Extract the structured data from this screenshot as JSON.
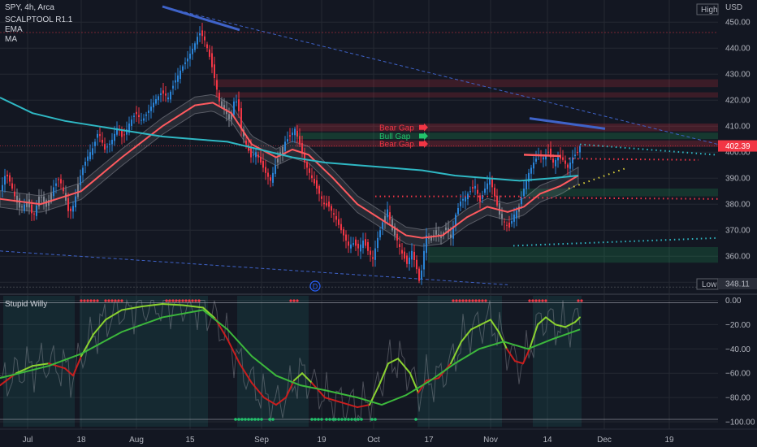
{
  "header": {
    "symbol": "SPY, 4h, Arca",
    "indicators": [
      "SCALPTOOL R1.1",
      "EMA",
      "MA"
    ],
    "currency": "USD"
  },
  "oscillator": {
    "title": "Stupid Willy"
  },
  "colors": {
    "background": "#131722",
    "grid": "#242832",
    "up_candle": "#2a83d6",
    "down_candle": "#f23645",
    "neutral_candle": "#808590",
    "ema": "#ff5a5f",
    "ma": "#2fb8c4",
    "bear_gap": "#f23645",
    "bull_gap": "#22c36b",
    "osc_green": "#8bd230",
    "osc_red": "#c81e1e",
    "osc_signal": "#3cb83c"
  },
  "chart_data": [
    {
      "type": "candlestick",
      "symbol": "SPY",
      "timeframe": "4h",
      "ylim": [
        346,
        456
      ],
      "y_ticks": [
        350,
        360,
        370,
        380,
        390,
        400,
        410,
        420,
        430,
        440,
        450
      ],
      "x_ticks": [
        "Jul",
        "18",
        "Aug",
        "15",
        "Sep",
        "19",
        "Oct",
        "17",
        "Nov",
        "14",
        "Dec",
        "19"
      ],
      "last_price": 402.39,
      "high_label": "High",
      "low_label": "Low",
      "low_value": 348.11,
      "gap_labels": [
        "Bear Gap",
        "Bull Gap",
        "Bear Gap"
      ],
      "event_marker": "D",
      "price_path_close": [
        [
          0,
          385
        ],
        [
          6,
          392
        ],
        [
          12,
          388
        ],
        [
          18,
          382
        ],
        [
          24,
          378
        ],
        [
          32,
          381
        ],
        [
          40,
          375
        ],
        [
          48,
          384
        ],
        [
          56,
          379
        ],
        [
          64,
          386
        ],
        [
          72,
          390
        ],
        [
          78,
          384
        ],
        [
          84,
          376
        ],
        [
          90,
          380
        ],
        [
          96,
          389
        ],
        [
          102,
          395
        ],
        [
          108,
          399
        ],
        [
          114,
          402
        ],
        [
          120,
          408
        ],
        [
          128,
          401
        ],
        [
          136,
          404
        ],
        [
          144,
          410
        ],
        [
          150,
          405
        ],
        [
          158,
          411
        ],
        [
          166,
          415
        ],
        [
          174,
          412
        ],
        [
          182,
          416
        ],
        [
          190,
          420
        ],
        [
          198,
          423
        ],
        [
          206,
          421
        ],
        [
          214,
          427
        ],
        [
          222,
          432
        ],
        [
          230,
          436
        ],
        [
          238,
          441
        ],
        [
          244,
          446
        ],
        [
          250,
          444
        ],
        [
          256,
          438
        ],
        [
          262,
          430
        ],
        [
          266,
          424
        ],
        [
          270,
          418
        ],
        [
          276,
          416
        ],
        [
          282,
          412
        ],
        [
          288,
          421
        ],
        [
          292,
          418
        ],
        [
          296,
          409
        ],
        [
          302,
          403
        ],
        [
          308,
          398
        ],
        [
          314,
          400
        ],
        [
          320,
          396
        ],
        [
          326,
          392
        ],
        [
          332,
          389
        ],
        [
          338,
          395
        ],
        [
          344,
          400
        ],
        [
          350,
          404
        ],
        [
          356,
          406
        ],
        [
          362,
          409
        ],
        [
          368,
          403
        ],
        [
          374,
          396
        ],
        [
          380,
          392
        ],
        [
          386,
          388
        ],
        [
          392,
          384
        ],
        [
          398,
          380
        ],
        [
          404,
          379
        ],
        [
          410,
          376
        ],
        [
          416,
          372
        ],
        [
          422,
          368
        ],
        [
          428,
          364
        ],
        [
          434,
          365
        ],
        [
          440,
          363
        ],
        [
          446,
          366
        ],
        [
          452,
          362
        ],
        [
          458,
          359
        ],
        [
          464,
          367
        ],
        [
          470,
          373
        ],
        [
          476,
          378
        ],
        [
          482,
          370
        ],
        [
          488,
          366
        ],
        [
          494,
          361
        ],
        [
          500,
          357
        ],
        [
          506,
          362
        ],
        [
          512,
          355
        ],
        [
          516,
          349
        ],
        [
          520,
          360
        ],
        [
          524,
          368
        ],
        [
          530,
          366
        ],
        [
          536,
          370
        ],
        [
          542,
          367
        ],
        [
          548,
          371
        ],
        [
          554,
          367
        ],
        [
          560,
          376
        ],
        [
          566,
          381
        ],
        [
          572,
          383
        ],
        [
          578,
          385
        ],
        [
          584,
          387
        ],
        [
          590,
          381
        ],
        [
          596,
          386
        ],
        [
          602,
          390
        ],
        [
          608,
          383
        ],
        [
          614,
          376
        ],
        [
          620,
          373
        ],
        [
          626,
          371
        ],
        [
          632,
          376
        ],
        [
          638,
          379
        ],
        [
          644,
          386
        ],
        [
          650,
          392
        ],
        [
          656,
          396
        ],
        [
          662,
          399
        ],
        [
          668,
          398
        ],
        [
          674,
          400
        ],
        [
          680,
          396
        ],
        [
          686,
          398
        ],
        [
          692,
          397
        ],
        [
          698,
          394
        ],
        [
          704,
          398
        ],
        [
          710,
          400
        ],
        [
          714,
          403
        ]
      ],
      "ema_path": [
        [
          0,
          382
        ],
        [
          50,
          380
        ],
        [
          100,
          385
        ],
        [
          150,
          398
        ],
        [
          200,
          410
        ],
        [
          240,
          418
        ],
        [
          262,
          419
        ],
        [
          285,
          415
        ],
        [
          310,
          403
        ],
        [
          340,
          398
        ],
        [
          360,
          401
        ],
        [
          380,
          399
        ],
        [
          410,
          390
        ],
        [
          440,
          380
        ],
        [
          470,
          374
        ],
        [
          500,
          368
        ],
        [
          520,
          367
        ],
        [
          545,
          368
        ],
        [
          575,
          375
        ],
        [
          600,
          379
        ],
        [
          625,
          377
        ],
        [
          645,
          379
        ],
        [
          665,
          384
        ],
        [
          690,
          387
        ],
        [
          712,
          391
        ]
      ],
      "ma_path": [
        [
          0,
          421
        ],
        [
          40,
          415
        ],
        [
          80,
          412
        ],
        [
          120,
          410
        ],
        [
          160,
          408
        ],
        [
          200,
          406
        ],
        [
          240,
          405
        ],
        [
          280,
          404
        ],
        [
          320,
          401
        ],
        [
          360,
          398
        ],
        [
          400,
          396
        ],
        [
          440,
          395
        ],
        [
          480,
          394
        ],
        [
          520,
          393
        ],
        [
          560,
          391
        ],
        [
          600,
          390
        ],
        [
          640,
          389
        ],
        [
          680,
          390
        ],
        [
          712,
          391
        ]
      ]
    },
    {
      "type": "line",
      "title": "Stupid Willy",
      "ylim": [
        -104,
        5
      ],
      "y_ticks": [
        0,
        -20,
        -40,
        -60,
        -80,
        -100
      ],
      "series": [
        {
          "values": [
            [
              0,
              -70
            ],
            [
              20,
              -60
            ],
            [
              40,
              -54
            ],
            [
              60,
              -52
            ],
            [
              80,
              -56
            ],
            [
              90,
              -62
            ],
            [
              100,
              -46
            ],
            [
              115,
              -28
            ],
            [
              130,
              -16
            ],
            [
              150,
              -8
            ],
            [
              175,
              -5
            ],
            [
              200,
              -3
            ],
            [
              225,
              -4
            ],
            [
              250,
              -6
            ],
            [
              265,
              -15
            ],
            [
              280,
              -32
            ],
            [
              295,
              -52
            ],
            [
              310,
              -68
            ],
            [
              325,
              -80
            ],
            [
              340,
              -86
            ],
            [
              352,
              -80
            ],
            [
              362,
              -66
            ],
            [
              372,
              -60
            ],
            [
              384,
              -68
            ],
            [
              400,
              -80
            ],
            [
              420,
              -84
            ],
            [
              440,
              -88
            ],
            [
              455,
              -86
            ],
            [
              468,
              -68
            ],
            [
              478,
              -52
            ],
            [
              490,
              -48
            ],
            [
              505,
              -60
            ],
            [
              515,
              -76
            ],
            [
              525,
              -66
            ],
            [
              540,
              -64
            ],
            [
              555,
              -52
            ],
            [
              568,
              -34
            ],
            [
              580,
              -24
            ],
            [
              592,
              -20
            ],
            [
              604,
              -16
            ],
            [
              614,
              -26
            ],
            [
              624,
              -40
            ],
            [
              634,
              -50
            ],
            [
              644,
              -52
            ],
            [
              652,
              -40
            ],
            [
              662,
              -20
            ],
            [
              672,
              -14
            ],
            [
              684,
              -20
            ],
            [
              696,
              -22
            ],
            [
              708,
              -18
            ],
            [
              714,
              -14
            ]
          ]
        },
        {
          "values": [
            [
              0,
              -64
            ],
            [
              60,
              -54
            ],
            [
              100,
              -44
            ],
            [
              150,
              -26
            ],
            [
              200,
              -14
            ],
            [
              250,
              -8
            ],
            [
              280,
              -24
            ],
            [
              310,
              -46
            ],
            [
              340,
              -62
            ],
            [
              370,
              -70
            ],
            [
              400,
              -74
            ],
            [
              440,
              -80
            ],
            [
              470,
              -86
            ],
            [
              500,
              -78
            ],
            [
              530,
              -66
            ],
            [
              560,
              -52
            ],
            [
              590,
              -40
            ],
            [
              620,
              -34
            ],
            [
              650,
              -40
            ],
            [
              680,
              -32
            ],
            [
              714,
              -24
            ]
          ]
        }
      ]
    }
  ]
}
